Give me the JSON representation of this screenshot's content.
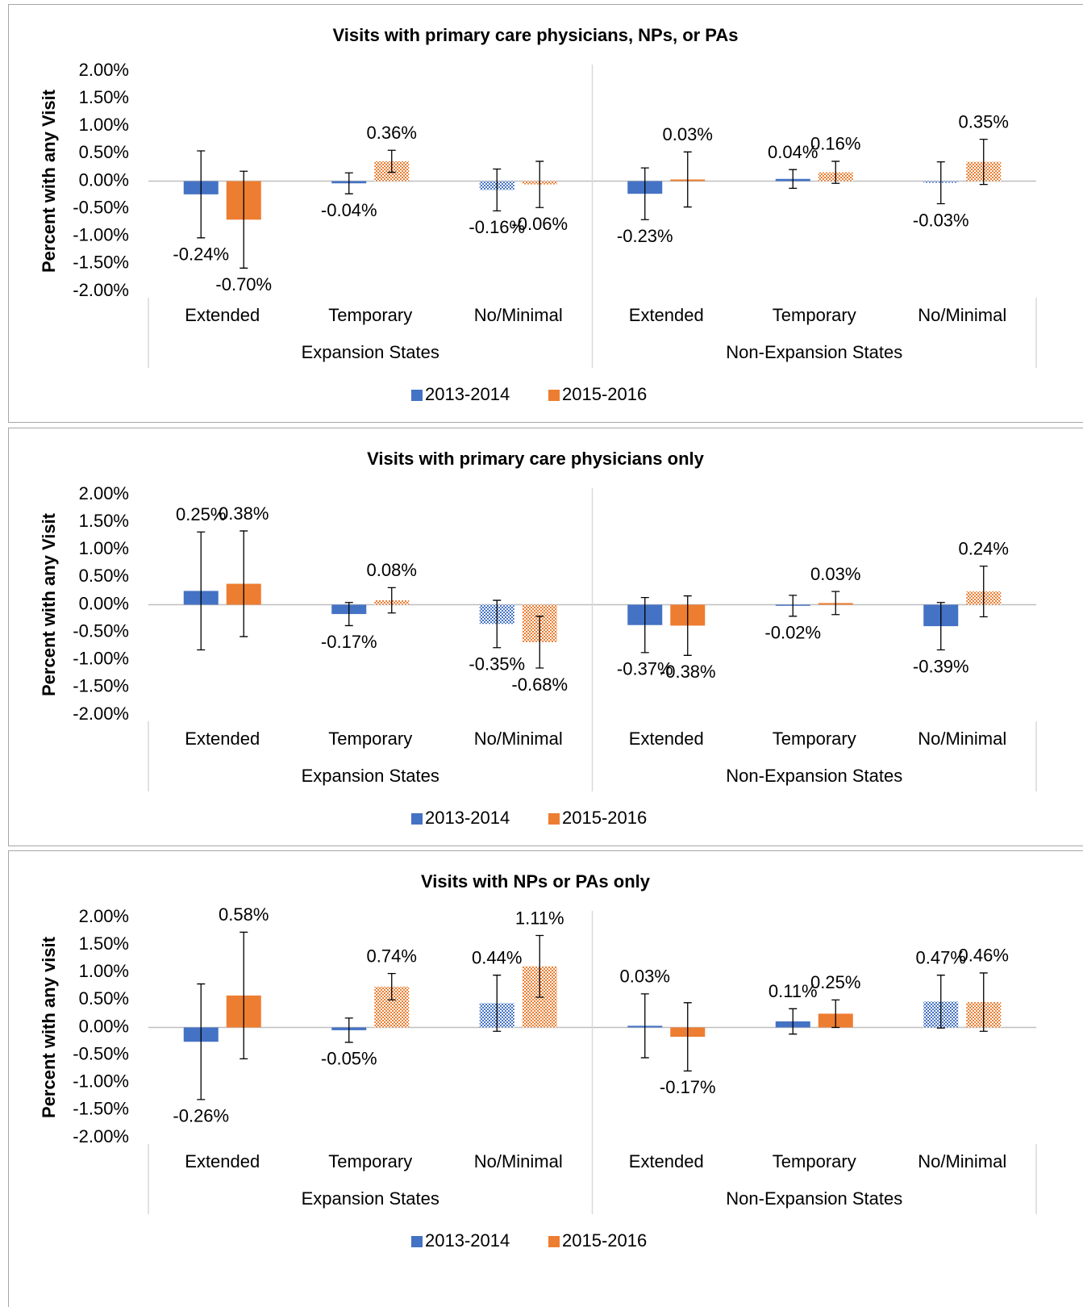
{
  "chart_data": [
    {
      "type": "bar",
      "title": "Visits with primary care physicians, NPs, or PAs",
      "y_label": "Percent with any Visit",
      "categories": [
        "Extended",
        "Temporary",
        "No/Minimal",
        "Extended",
        "Temporary",
        "No/Minimal"
      ],
      "groups": [
        "Expansion States",
        "Non-Expansion States"
      ],
      "ylim": [
        -2,
        2
      ],
      "yticks": [
        {
          "value": 2,
          "label": "2.00%"
        },
        {
          "value": 1.5,
          "label": "1.50%"
        },
        {
          "value": 1,
          "label": "1.00%"
        },
        {
          "value": 0.5,
          "label": "0.50%"
        },
        {
          "value": 0,
          "label": "0.00%"
        },
        {
          "value": -0.5,
          "label": "-0.50%"
        },
        {
          "value": -1,
          "label": "-1.00%"
        },
        {
          "value": -1.5,
          "label": "-1.50%"
        },
        {
          "value": -2,
          "label": "-2.00%"
        }
      ],
      "grid": false,
      "legend": "bottom",
      "series": [
        {
          "name": "2013-2014",
          "color": "#4472c4",
          "values": [
            -0.24,
            -0.04,
            -0.16,
            -0.23,
            0.04,
            -0.03
          ],
          "value_labels": [
            "-0.24%",
            "-0.04%",
            "-0.16%",
            "-0.23%",
            "0.04%",
            "-0.03%"
          ],
          "errors": [
            0.79,
            0.19,
            0.38,
            0.47,
            0.17,
            0.38
          ],
          "patterned": [
            false,
            false,
            true,
            false,
            false,
            true
          ]
        },
        {
          "name": "2015-2016",
          "color": "#ed7d31",
          "values": [
            -0.7,
            0.36,
            -0.06,
            0.03,
            0.16,
            0.35
          ],
          "value_labels": [
            "-0.70%",
            "0.36%",
            "-0.06%",
            "0.03%",
            "0.16%",
            "0.35%"
          ],
          "errors": [
            0.88,
            0.2,
            0.42,
            0.5,
            0.2,
            0.41
          ],
          "patterned": [
            false,
            true,
            true,
            false,
            true,
            true
          ]
        }
      ]
    },
    {
      "type": "bar",
      "title": "Visits with primary care physicians only",
      "y_label": "Percent with any Visit",
      "categories": [
        "Extended",
        "Temporary",
        "No/Minimal",
        "Extended",
        "Temporary",
        "No/Minimal"
      ],
      "groups": [
        "Expansion States",
        "Non-Expansion States"
      ],
      "ylim": [
        -2,
        2
      ],
      "yticks": [
        {
          "value": 2,
          "label": "2.00%"
        },
        {
          "value": 1.5,
          "label": "1.50%"
        },
        {
          "value": 1,
          "label": "1.00%"
        },
        {
          "value": 0.5,
          "label": "0.50%"
        },
        {
          "value": 0,
          "label": "0.00%"
        },
        {
          "value": -0.5,
          "label": "-0.50%"
        },
        {
          "value": -1,
          "label": "-1.00%"
        },
        {
          "value": -1.5,
          "label": "-1.50%"
        },
        {
          "value": -2,
          "label": "-2.00%"
        }
      ],
      "grid": false,
      "legend": "bottom",
      "series": [
        {
          "name": "2013-2014",
          "color": "#4472c4",
          "values": [
            0.25,
            -0.17,
            -0.35,
            -0.37,
            -0.02,
            -0.39
          ],
          "value_labels": [
            "0.25%",
            "-0.17%",
            "-0.35%",
            "-0.37%",
            "-0.02%",
            "-0.39%"
          ],
          "errors": [
            1.07,
            0.21,
            0.43,
            0.5,
            0.19,
            0.43
          ],
          "patterned": [
            false,
            false,
            true,
            false,
            false,
            false
          ]
        },
        {
          "name": "2015-2016",
          "color": "#ed7d31",
          "values": [
            0.38,
            0.08,
            -0.68,
            -0.38,
            0.03,
            0.24
          ],
          "value_labels": [
            "0.38%",
            "0.08%",
            "-0.68%",
            "-0.38%",
            "0.03%",
            "0.24%"
          ],
          "errors": [
            0.96,
            0.23,
            0.47,
            0.54,
            0.21,
            0.46
          ],
          "patterned": [
            false,
            true,
            true,
            false,
            false,
            true
          ]
        }
      ]
    },
    {
      "type": "bar",
      "title": "Visits with NPs or PAs only",
      "y_label": "Percent with any visit",
      "categories": [
        "Extended",
        "Temporary",
        "No/Minimal",
        "Extended",
        "Temporary",
        "No/Minimal"
      ],
      "groups": [
        "Expansion States",
        "Non-Expansion States"
      ],
      "ylim": [
        -2,
        2
      ],
      "yticks": [
        {
          "value": 2,
          "label": "2.00%"
        },
        {
          "value": 1.5,
          "label": "1.50%"
        },
        {
          "value": 1,
          "label": "1.00%"
        },
        {
          "value": 0.5,
          "label": "0.50%"
        },
        {
          "value": 0,
          "label": "0.00%"
        },
        {
          "value": -0.5,
          "label": "-0.50%"
        },
        {
          "value": -1,
          "label": "-1.00%"
        },
        {
          "value": -1.5,
          "label": "-1.50%"
        },
        {
          "value": -2,
          "label": "-2.00%"
        }
      ],
      "grid": false,
      "legend": "bottom",
      "series": [
        {
          "name": "2013-2014",
          "color": "#4472c4",
          "values": [
            -0.26,
            -0.05,
            0.44,
            0.03,
            0.11,
            0.47
          ],
          "value_labels": [
            "-0.26%",
            "-0.05%",
            "0.44%",
            "0.03%",
            "0.11%",
            "0.47%"
          ],
          "errors": [
            1.05,
            0.22,
            0.51,
            0.58,
            0.23,
            0.48
          ],
          "patterned": [
            false,
            false,
            true,
            false,
            false,
            true
          ]
        },
        {
          "name": "2015-2016",
          "color": "#ed7d31",
          "values": [
            0.58,
            0.74,
            1.11,
            -0.17,
            0.25,
            0.46
          ],
          "value_labels": [
            "0.58%",
            "0.74%",
            "1.11%",
            "-0.17%",
            "0.25%",
            "0.46%"
          ],
          "errors": [
            1.15,
            0.24,
            0.56,
            0.62,
            0.25,
            0.53
          ],
          "patterned": [
            false,
            true,
            true,
            false,
            false,
            true
          ]
        }
      ]
    }
  ]
}
